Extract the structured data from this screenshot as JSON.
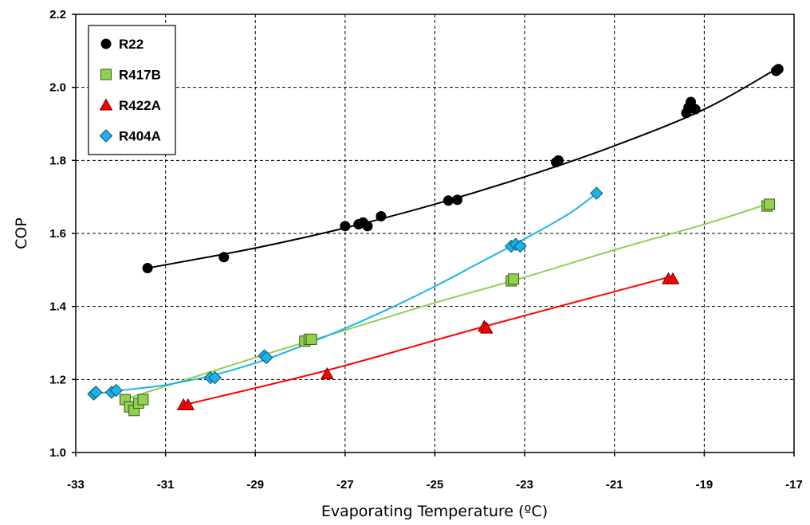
{
  "chart_data": {
    "type": "scatter",
    "title": "",
    "xlabel": "Evaporating Temperature (ºC)",
    "ylabel": "COP",
    "xlim": [
      -33,
      -17
    ],
    "ylim": [
      1.0,
      2.2
    ],
    "x_ticks": [
      "-33",
      "-31",
      "-29",
      "-27",
      "-25",
      "-23",
      "-21",
      "-19",
      "-17"
    ],
    "y_ticks": [
      "1.0",
      "1.2",
      "1.4",
      "1.6",
      "1.8",
      "2.0",
      "2.2"
    ],
    "grid": true,
    "legend_position": "top-left",
    "series": [
      {
        "name": "R22",
        "marker": "circle",
        "color": "#000000",
        "points": [
          [
            -31.4,
            1.505
          ],
          [
            -29.7,
            1.535
          ],
          [
            -27.0,
            1.62
          ],
          [
            -26.7,
            1.625
          ],
          [
            -26.6,
            1.63
          ],
          [
            -26.5,
            1.62
          ],
          [
            -26.2,
            1.647
          ],
          [
            -24.7,
            1.69
          ],
          [
            -24.5,
            1.692
          ],
          [
            -22.3,
            1.795
          ],
          [
            -22.25,
            1.8
          ],
          [
            -19.4,
            1.93
          ],
          [
            -19.35,
            1.945
          ],
          [
            -19.3,
            1.96
          ],
          [
            -19.2,
            1.94
          ],
          [
            -17.4,
            2.045
          ],
          [
            -17.35,
            2.05
          ]
        ],
        "trend": [
          [
            -31.4,
            1.505
          ],
          [
            -29,
            1.56
          ],
          [
            -27,
            1.615
          ],
          [
            -25,
            1.68
          ],
          [
            -23,
            1.755
          ],
          [
            -21,
            1.84
          ],
          [
            -19,
            1.94
          ],
          [
            -17.4,
            2.05
          ]
        ]
      },
      {
        "name": "R417B",
        "marker": "square",
        "color": "#92D050",
        "points": [
          [
            -31.9,
            1.145
          ],
          [
            -31.8,
            1.125
          ],
          [
            -31.7,
            1.115
          ],
          [
            -31.6,
            1.135
          ],
          [
            -31.5,
            1.145
          ],
          [
            -27.9,
            1.305
          ],
          [
            -27.8,
            1.31
          ],
          [
            -27.75,
            1.31
          ],
          [
            -23.3,
            1.47
          ],
          [
            -23.25,
            1.475
          ],
          [
            -17.6,
            1.675
          ],
          [
            -17.55,
            1.68
          ]
        ],
        "trend": [
          [
            -31.8,
            1.15
          ],
          [
            -29,
            1.26
          ],
          [
            -27,
            1.335
          ],
          [
            -25,
            1.41
          ],
          [
            -23,
            1.48
          ],
          [
            -21,
            1.555
          ],
          [
            -19,
            1.625
          ],
          [
            -17.6,
            1.68
          ]
        ]
      },
      {
        "name": "R422A",
        "marker": "triangle",
        "color": "#FF0000",
        "points": [
          [
            -30.6,
            1.13
          ],
          [
            -30.5,
            1.13
          ],
          [
            -27.4,
            1.215
          ],
          [
            -23.9,
            1.345
          ],
          [
            -23.85,
            1.34
          ],
          [
            -19.8,
            1.475
          ],
          [
            -19.7,
            1.475
          ]
        ],
        "trend": [
          [
            -30.6,
            1.13
          ],
          [
            -27.4,
            1.225
          ],
          [
            -23.9,
            1.345
          ],
          [
            -19.8,
            1.48
          ]
        ]
      },
      {
        "name": "R404A",
        "marker": "diamond",
        "color": "#1CB4E8",
        "points": [
          [
            -32.6,
            1.16
          ],
          [
            -32.55,
            1.165
          ],
          [
            -32.2,
            1.165
          ],
          [
            -32.1,
            1.17
          ],
          [
            -30.0,
            1.205
          ],
          [
            -29.9,
            1.205
          ],
          [
            -28.8,
            1.265
          ],
          [
            -28.75,
            1.26
          ],
          [
            -23.3,
            1.565
          ],
          [
            -23.2,
            1.57
          ],
          [
            -23.1,
            1.565
          ],
          [
            -21.4,
            1.71
          ]
        ],
        "trend": [
          [
            -32.6,
            1.16
          ],
          [
            -32,
            1.17
          ],
          [
            -31,
            1.185
          ],
          [
            -30,
            1.21
          ],
          [
            -29,
            1.245
          ],
          [
            -28,
            1.29
          ],
          [
            -27,
            1.34
          ],
          [
            -26,
            1.395
          ],
          [
            -25,
            1.455
          ],
          [
            -24,
            1.52
          ],
          [
            -23,
            1.585
          ],
          [
            -22,
            1.655
          ],
          [
            -21.4,
            1.71
          ]
        ]
      }
    ]
  }
}
